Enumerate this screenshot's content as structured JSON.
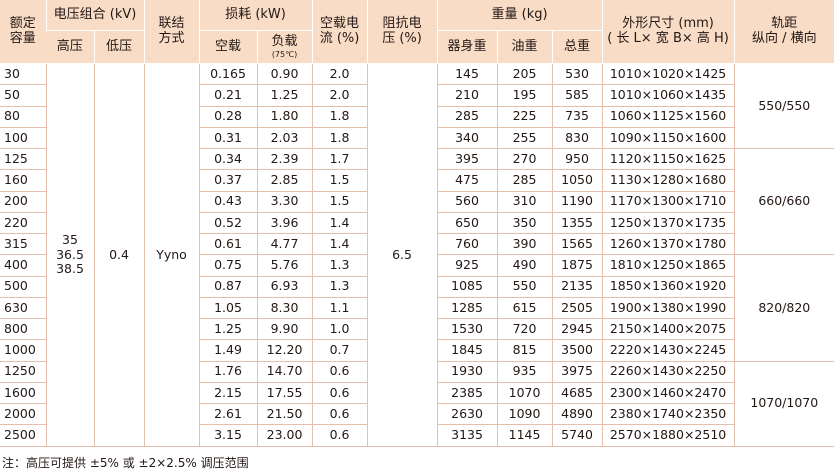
{
  "table": {
    "headers": {
      "capacity": [
        "额定",
        "容量"
      ],
      "voltage_group": "电压组合 (kV)",
      "hv": "高压",
      "lv": "低压",
      "connection": [
        "联结",
        "方式"
      ],
      "losses": "损耗 (kW)",
      "no_load_loss": "空载",
      "load_loss": "负载",
      "load_loss_temp": "(75℃)",
      "no_load_current": [
        "空载电",
        "流 (%)"
      ],
      "impedance": [
        "阻抗电",
        "压 (%)"
      ],
      "weight": "重量 (kg)",
      "body_weight": "器身重",
      "oil_weight": "油重",
      "total_weight": "总重",
      "dimensions": [
        "外形尺寸 (mm)",
        "( 长 L× 宽 B× 高 H)"
      ],
      "gauge": [
        "轨距",
        "纵向 / 横向"
      ]
    },
    "merged": {
      "hv": [
        "35",
        "36.5",
        "38.5"
      ],
      "lv": "0.4",
      "connection": "Yyno",
      "impedance": "6.5"
    },
    "gauge_groups": [
      {
        "value": "550/550",
        "rows": 4
      },
      {
        "value": "660/660",
        "rows": 5
      },
      {
        "value": "820/820",
        "rows": 5
      },
      {
        "value": "1070/1070",
        "rows": 4
      }
    ],
    "rows": [
      {
        "capacity": "30",
        "no_load": "0.165",
        "load": "0.90",
        "current": "2.0",
        "body": "145",
        "oil": "205",
        "total": "530",
        "dims": "1010×1020×1425"
      },
      {
        "capacity": "50",
        "no_load": "0.21",
        "load": "1.25",
        "current": "2.0",
        "body": "210",
        "oil": "195",
        "total": "585",
        "dims": "1010×1060×1435"
      },
      {
        "capacity": "80",
        "no_load": "0.28",
        "load": "1.80",
        "current": "1.8",
        "body": "285",
        "oil": "225",
        "total": "735",
        "dims": "1060×1125×1560"
      },
      {
        "capacity": "100",
        "no_load": "0.31",
        "load": "2.03",
        "current": "1.8",
        "body": "340",
        "oil": "255",
        "total": "830",
        "dims": "1090×1150×1600"
      },
      {
        "capacity": "125",
        "no_load": "0.34",
        "load": "2.39",
        "current": "1.7",
        "body": "395",
        "oil": "270",
        "total": "950",
        "dims": "1120×1150×1625"
      },
      {
        "capacity": "160",
        "no_load": "0.37",
        "load": "2.85",
        "current": "1.5",
        "body": "475",
        "oil": "285",
        "total": "1050",
        "dims": "1130×1280×1680"
      },
      {
        "capacity": "200",
        "no_load": "0.43",
        "load": "3.30",
        "current": "1.5",
        "body": "560",
        "oil": "310",
        "total": "1190",
        "dims": "1170×1300×1710"
      },
      {
        "capacity": "220",
        "no_load": "0.52",
        "load": "3.96",
        "current": "1.4",
        "body": "650",
        "oil": "350",
        "total": "1355",
        "dims": "1250×1370×1735"
      },
      {
        "capacity": "315",
        "no_load": "0.61",
        "load": "4.77",
        "current": "1.4",
        "body": "760",
        "oil": "390",
        "total": "1565",
        "dims": "1260×1370×1780"
      },
      {
        "capacity": "400",
        "no_load": "0.75",
        "load": "5.76",
        "current": "1.3",
        "body": "925",
        "oil": "490",
        "total": "1875",
        "dims": "1810×1250×1865"
      },
      {
        "capacity": "500",
        "no_load": "0.87",
        "load": "6.93",
        "current": "1.3",
        "body": "1085",
        "oil": "550",
        "total": "2135",
        "dims": "1850×1360×1920"
      },
      {
        "capacity": "630",
        "no_load": "1.05",
        "load": "8.30",
        "current": "1.1",
        "body": "1285",
        "oil": "615",
        "total": "2505",
        "dims": "1900×1380×1990"
      },
      {
        "capacity": "800",
        "no_load": "1.25",
        "load": "9.90",
        "current": "1.0",
        "body": "1530",
        "oil": "720",
        "total": "2945",
        "dims": "2150×1400×2075"
      },
      {
        "capacity": "1000",
        "no_load": "1.49",
        "load": "12.20",
        "current": "0.7",
        "body": "1845",
        "oil": "815",
        "total": "3500",
        "dims": "2220×1430×2245"
      },
      {
        "capacity": "1250",
        "no_load": "1.76",
        "load": "14.70",
        "current": "0.6",
        "body": "1930",
        "oil": "935",
        "total": "3975",
        "dims": "2260×1430×2250"
      },
      {
        "capacity": "1600",
        "no_load": "2.15",
        "load": "17.55",
        "current": "0.6",
        "body": "2385",
        "oil": "1070",
        "total": "4685",
        "dims": "2300×1460×2470"
      },
      {
        "capacity": "2000",
        "no_load": "2.61",
        "load": "21.50",
        "current": "0.6",
        "body": "2630",
        "oil": "1090",
        "total": "4890",
        "dims": "2380×1740×2350"
      },
      {
        "capacity": "2500",
        "no_load": "3.15",
        "load": "23.00",
        "current": "0.6",
        "body": "3135",
        "oil": "1145",
        "total": "5740",
        "dims": "2570×1880×2510"
      }
    ]
  },
  "footnote": "注：高压可提供 ±5% 或 ±2×2.5% 调压范围"
}
